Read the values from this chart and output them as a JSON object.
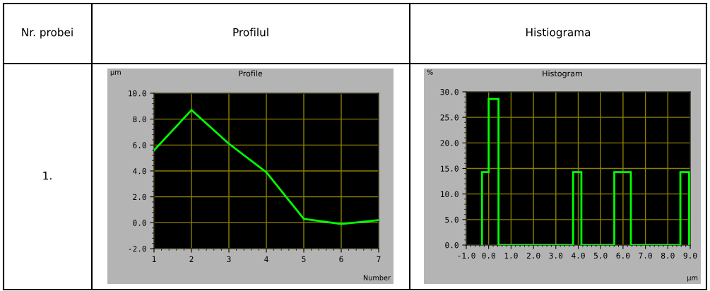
{
  "chart_data": [
    {
      "type": "line",
      "title": "Profilul",
      "subtitle": "Profile",
      "xlabel": "Number",
      "ylabel": "µm",
      "annotations": [
        "Nr. probei",
        "1."
      ],
      "x": [
        1,
        2,
        3,
        4,
        5,
        6,
        7
      ],
      "series": [
        {
          "color": "#00ff00",
          "values": [
            5.6,
            8.7,
            6.1,
            3.9,
            0.3,
            -0.1,
            0.2
          ]
        }
      ],
      "xlim": [
        1,
        7
      ],
      "xticks": [
        1,
        2,
        3,
        4,
        5,
        6,
        7
      ],
      "ylim": [
        -2,
        10
      ],
      "yticks": [
        {
          "value": -2,
          "label": "-2.0"
        },
        {
          "value": 0,
          "label": "0.0"
        },
        {
          "value": 2,
          "label": "2.0"
        },
        {
          "value": 4,
          "label": "4.0"
        },
        {
          "value": 6,
          "label": "6.0"
        },
        {
          "value": 8,
          "label": "8.0"
        },
        {
          "value": 10,
          "label": "10.0"
        }
      ],
      "grid": true
    },
    {
      "type": "histogram",
      "title": "Histiograma",
      "subtitle": "Histogram",
      "xlabel": "µm",
      "ylabel": "%",
      "color": "#00ff00",
      "bins": [
        -0.3,
        0.0,
        0.44,
        3.77,
        4.14,
        5.61,
        5.98,
        6.35,
        8.56,
        8.95
      ],
      "values": [
        14.3,
        28.6,
        0,
        14.3,
        0,
        14.3,
        14.3,
        0,
        14.3
      ],
      "xlim": [
        -1,
        9
      ],
      "xticks": [
        {
          "value": -1,
          "label": "-1.0"
        },
        {
          "value": 0,
          "label": "0.0"
        },
        {
          "value": 1,
          "label": "1.0"
        },
        {
          "value": 2,
          "label": "2.0"
        },
        {
          "value": 3,
          "label": "3.0"
        },
        {
          "value": 4,
          "label": "4.0"
        },
        {
          "value": 5,
          "label": "5.0"
        },
        {
          "value": 6,
          "label": "6.0"
        },
        {
          "value": 7,
          "label": "7.0"
        },
        {
          "value": 8,
          "label": "8.0"
        },
        {
          "value": 9,
          "label": "9.0"
        }
      ],
      "ylim": [
        0,
        30
      ],
      "yticks": [
        {
          "value": 0,
          "label": "0.0"
        },
        {
          "value": 5,
          "label": "5.0"
        },
        {
          "value": 10,
          "label": "10.0"
        },
        {
          "value": 15,
          "label": "15.0"
        },
        {
          "value": 20,
          "label": "20.0"
        },
        {
          "value": 25,
          "label": "25.0"
        },
        {
          "value": 30,
          "label": "30.0"
        }
      ],
      "grid": true
    }
  ]
}
